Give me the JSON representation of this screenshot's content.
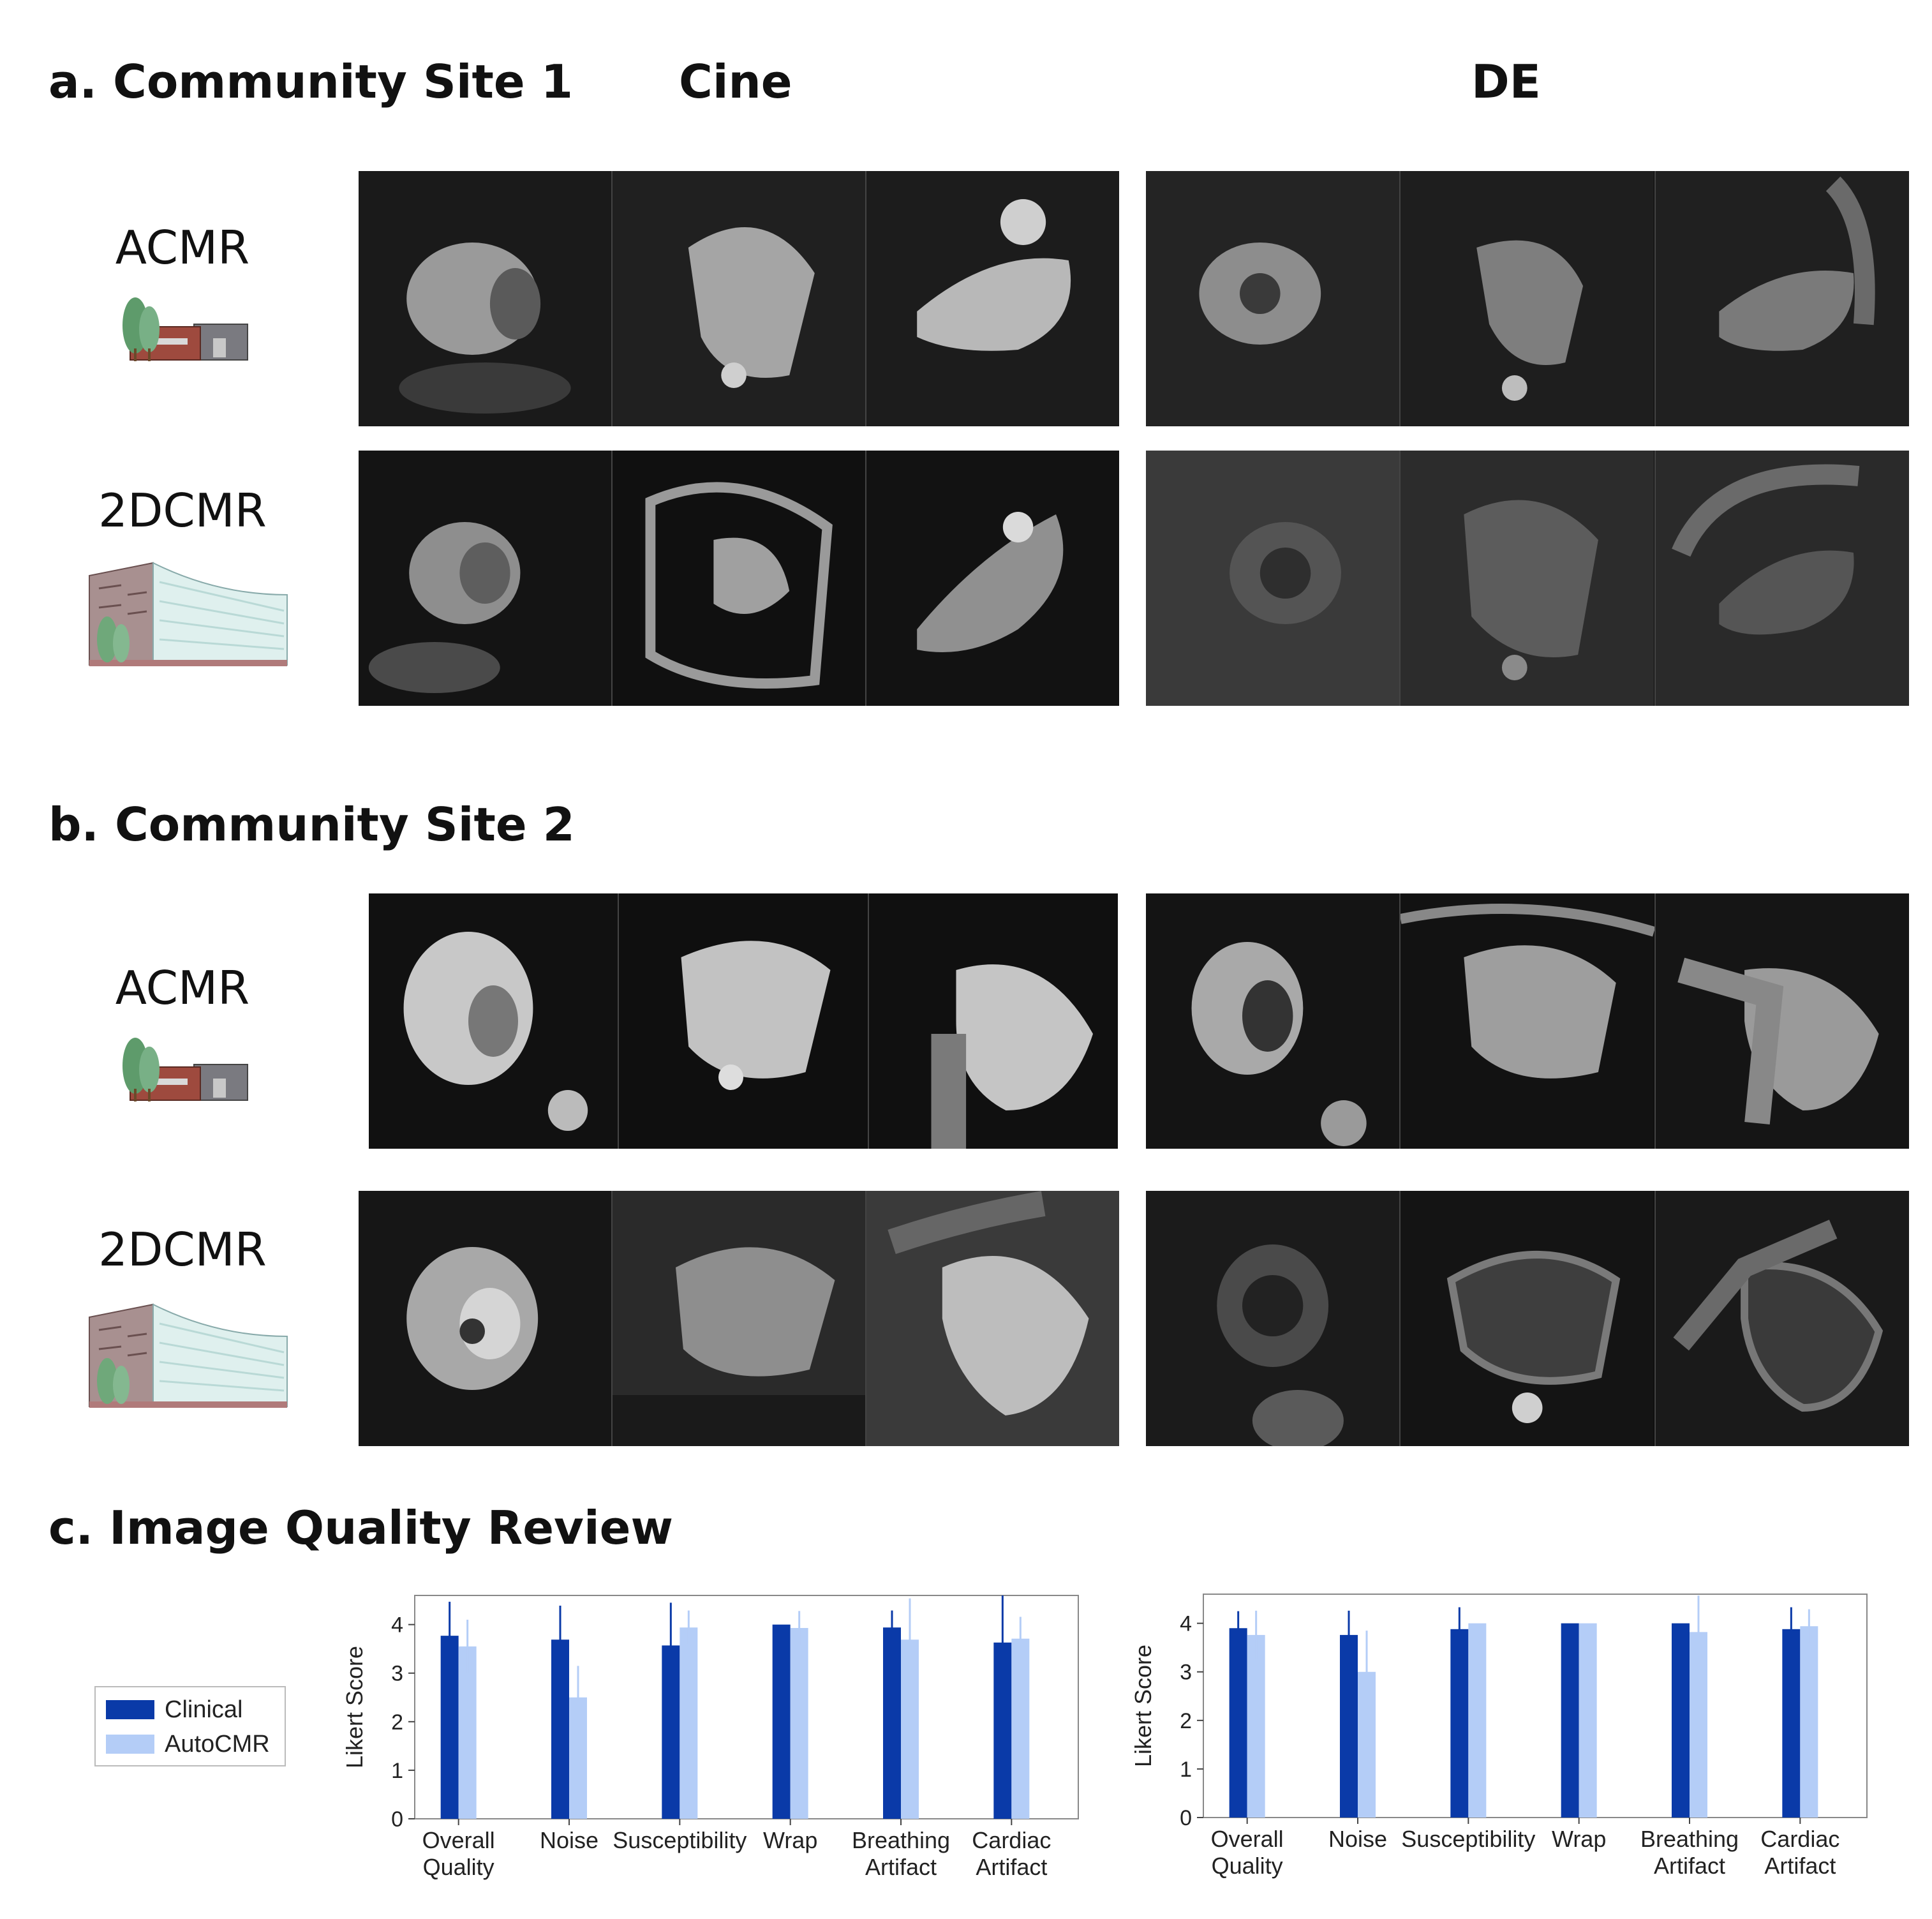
{
  "headings": {
    "a": "a. Community Site 1",
    "b": "b. Community Site 2",
    "c": "c. Image Quality Review",
    "cine": "Cine",
    "de": "DE"
  },
  "rows": {
    "acmr": "ACMR",
    "cmr2d": "2DCMR"
  },
  "icons": {
    "acmr": "small-clinic-building-icon",
    "cmr2d": "large-hospital-building-icon"
  },
  "legend": [
    {
      "label": "Clinical",
      "color": "#0a3aa8"
    },
    {
      "label": "AutoCMR",
      "color": "#b4cdf7"
    }
  ],
  "chart_data": [
    {
      "type": "bar",
      "ylabel": "Likert Score",
      "ylim": [
        0,
        4.6
      ],
      "yticks": [
        0,
        1,
        2,
        3,
        4
      ],
      "categories": [
        "Overall\nQuality",
        "Noise",
        "Susceptibility",
        "Wrap",
        "Breathing\nArtifact",
        "Cardiac\nArtifact"
      ],
      "series": [
        {
          "name": "Clinical",
          "color": "#0a3aa8",
          "values": [
            3.77,
            3.69,
            3.57,
            4.0,
            3.94,
            3.63
          ],
          "err": [
            0.7,
            0.7,
            0.88,
            0.0,
            0.35,
            1.05
          ]
        },
        {
          "name": "AutoCMR",
          "color": "#b4cdf7",
          "values": [
            3.55,
            2.5,
            3.94,
            3.93,
            3.69,
            3.71
          ],
          "err": [
            0.55,
            0.65,
            0.35,
            0.35,
            0.85,
            0.45
          ]
        }
      ]
    },
    {
      "type": "bar",
      "ylabel": "Likert Score",
      "ylim": [
        0,
        4.6
      ],
      "yticks": [
        0,
        1,
        2,
        3,
        4
      ],
      "categories": [
        "Overall\nQuality",
        "Noise",
        "Susceptibility",
        "Wrap",
        "Breathing\nArtifact",
        "Cardiac\nArtifact"
      ],
      "series": [
        {
          "name": "Clinical",
          "color": "#0a3aa8",
          "values": [
            3.9,
            3.76,
            3.88,
            4.0,
            4.0,
            3.88
          ],
          "err": [
            0.35,
            0.5,
            0.45,
            0.0,
            0.0,
            0.45
          ]
        },
        {
          "name": "AutoCMR",
          "color": "#b4cdf7",
          "values": [
            3.76,
            3.0,
            4.0,
            4.0,
            3.82,
            3.94
          ],
          "err": [
            0.5,
            0.85,
            0.0,
            0.0,
            0.75,
            0.35
          ]
        }
      ]
    }
  ]
}
